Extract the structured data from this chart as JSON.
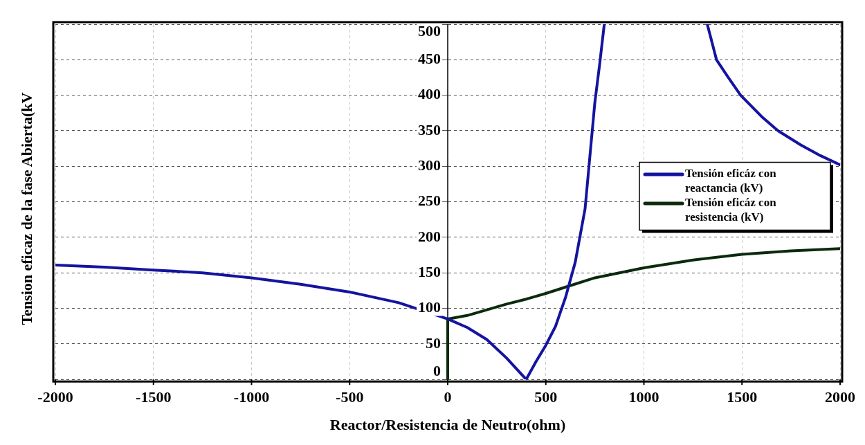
{
  "chart_data": {
    "type": "line",
    "xlabel": "Reactor/Resistencia de Neutro(ohm)",
    "ylabel": "Tension eficaz de la fase Abierta(kV",
    "xlim": [
      -2000,
      2000
    ],
    "xticks": [
      -2000,
      -1500,
      -1000,
      -500,
      0,
      500,
      1000,
      1500,
      2000
    ],
    "ylim": [
      0,
      500
    ],
    "yticks": [
      0,
      50,
      100,
      150,
      200,
      250,
      300,
      350,
      400,
      450,
      500
    ],
    "grid": true,
    "legend": "right",
    "marker": "none",
    "line_style": "solid",
    "series": [
      {
        "name": "Tensión eficáz con reactancia (kV)",
        "color": "#1414a0",
        "x": [
          -2000,
          -1750,
          -1500,
          -1250,
          -1000,
          -750,
          -500,
          -250,
          0,
          100,
          200,
          300,
          400,
          450,
          500,
          550,
          600,
          650,
          700,
          750,
          775,
          798,
          1000,
          1323,
          1370,
          1430,
          1493,
          1600,
          1684,
          1800,
          1900,
          2000
        ],
        "values": [
          161,
          158,
          154,
          150,
          143,
          134,
          123,
          108,
          85,
          73,
          56,
          30,
          0,
          25,
          48,
          75,
          115,
          165,
          240,
          390,
          445,
          500,
          null,
          500,
          450,
          425,
          400,
          370,
          350,
          330,
          315,
          302
        ]
      },
      {
        "name": "Tensión eficáz con resistencia (kV)",
        "color": "#0c2a0c",
        "x": [
          0,
          0,
          100,
          200,
          300,
          400,
          500,
          613,
          750,
          1000,
          1250,
          1500,
          1750,
          2000
        ],
        "values": [
          0,
          85,
          90,
          98,
          106,
          113,
          121,
          131,
          143,
          157,
          168,
          176,
          181,
          184
        ]
      }
    ]
  }
}
